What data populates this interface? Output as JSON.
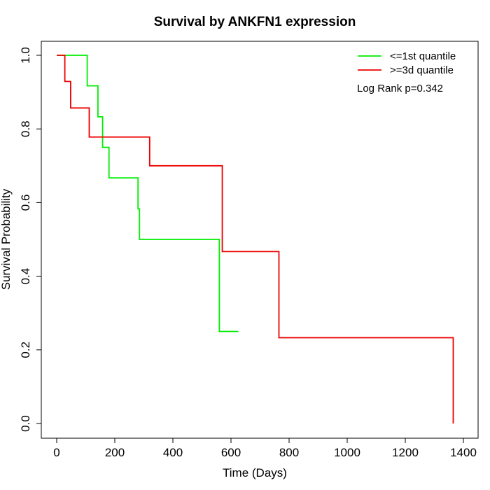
{
  "chart_data": {
    "type": "line",
    "title": "Survival by ANKFN1 expression",
    "xlabel": "Time (Days)",
    "ylabel": "Survival Probability",
    "xlim": [
      0,
      1400
    ],
    "ylim": [
      0,
      1.0
    ],
    "xticks": [
      0,
      200,
      400,
      600,
      800,
      1000,
      1200,
      1400
    ],
    "yticks": [
      0.0,
      0.2,
      0.4,
      0.6,
      0.8,
      1.0
    ],
    "xtick_labels": [
      "0",
      "200",
      "400",
      "600",
      "800",
      "1000",
      "1200",
      "1400"
    ],
    "ytick_labels": [
      "0.0",
      "0.2",
      "0.4",
      "0.6",
      "0.8",
      "1.0"
    ],
    "grid": false,
    "legend_position": "top-right",
    "annotation": "Log Rank p=0.342",
    "series": [
      {
        "name": "<=1st quantile",
        "color": "#00ee00",
        "step": true,
        "points": [
          [
            0,
            1.0
          ],
          [
            105,
            0.917
          ],
          [
            142,
            0.833
          ],
          [
            158,
            0.75
          ],
          [
            180,
            0.667
          ],
          [
            280,
            0.583
          ],
          [
            285,
            0.5
          ],
          [
            560,
            0.25
          ],
          [
            625,
            0.25
          ]
        ]
      },
      {
        "name": ">=3d quantile",
        "color": "#ee0000",
        "step": true,
        "points": [
          [
            0,
            1.0
          ],
          [
            28,
            0.929
          ],
          [
            48,
            0.857
          ],
          [
            112,
            0.778
          ],
          [
            320,
            0.7
          ],
          [
            570,
            0.467
          ],
          [
            765,
            0.233
          ],
          [
            1365,
            0.0
          ]
        ]
      }
    ]
  }
}
